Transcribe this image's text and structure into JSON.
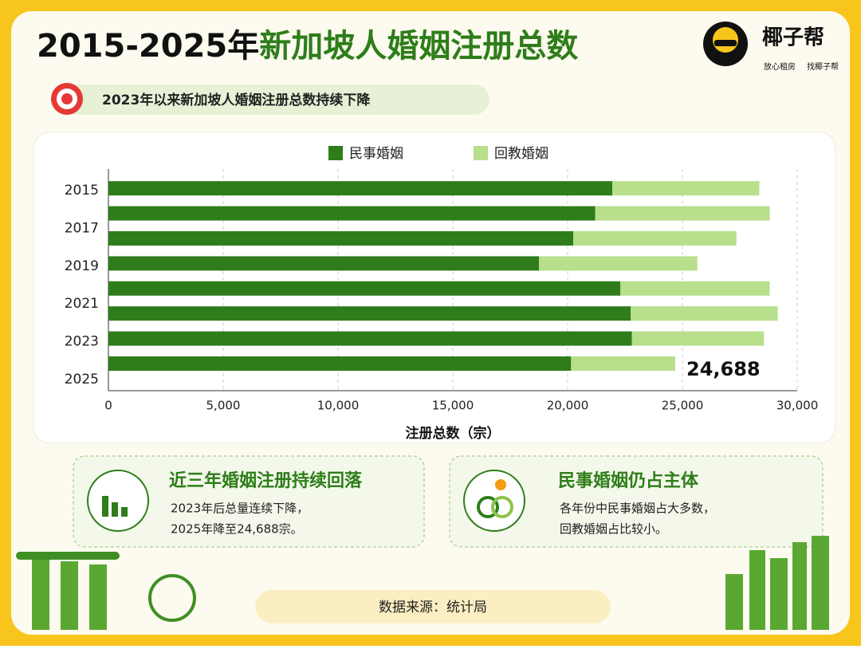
{
  "header": {
    "title_part1": "2015-2025年",
    "title_part2": "新加坡人婚姻注册总数",
    "subtitle": "2023年以来新加坡人婚姻注册总数持续下降"
  },
  "logo": {
    "name": "椰子帮",
    "slogan1": "放心租房",
    "slogan2": "找椰子帮"
  },
  "chart_data": {
    "type": "stacked-barh",
    "categories": [
      null,
      null,
      null,
      null,
      null,
      null,
      null,
      null
    ],
    "ytick_labels": [
      "2015",
      "2017",
      "2019",
      "2021",
      "2023",
      "2025"
    ],
    "series": [
      {
        "name": "民事婚姻",
        "color": "#2e7d1a",
        "values": [
          21950,
          21200,
          20250,
          18750,
          22300,
          22750,
          22800,
          20150
        ]
      },
      {
        "name": "回教婚姻",
        "color": "#b7df8c",
        "values": [
          6400,
          7600,
          7100,
          6900,
          6500,
          6400,
          5750,
          4538
        ]
      }
    ],
    "annotations": [
      {
        "value": 24688,
        "label": "24,688"
      }
    ],
    "xlabel": "注册总数（宗）",
    "xlim": [
      0,
      30000
    ],
    "xticks": [
      0,
      {
        "value": 5000,
        "label": "5,000"
      },
      {
        "value": 10000,
        "label": "10,000"
      },
      {
        "value": 15000,
        "label": "15,000"
      },
      {
        "value": 20000,
        "label": "20,000"
      },
      {
        "value": 25000,
        "label": "25,000"
      },
      {
        "value": 30000,
        "label": "30,000"
      }
    ],
    "grid": true,
    "legend": "top"
  },
  "cards": [
    {
      "title": "近三年婚姻注册持续回落",
      "lines": [
        "2023年后总量连续下降，",
        "2025年降至24,688宗。"
      ]
    },
    {
      "title": "民事婚姻仍占主体",
      "lines": [
        "各年份中民事婚姻占大多数，",
        "回教婚姻占比较小。"
      ]
    }
  ],
  "footer": {
    "source": "数据来源：统计局"
  }
}
